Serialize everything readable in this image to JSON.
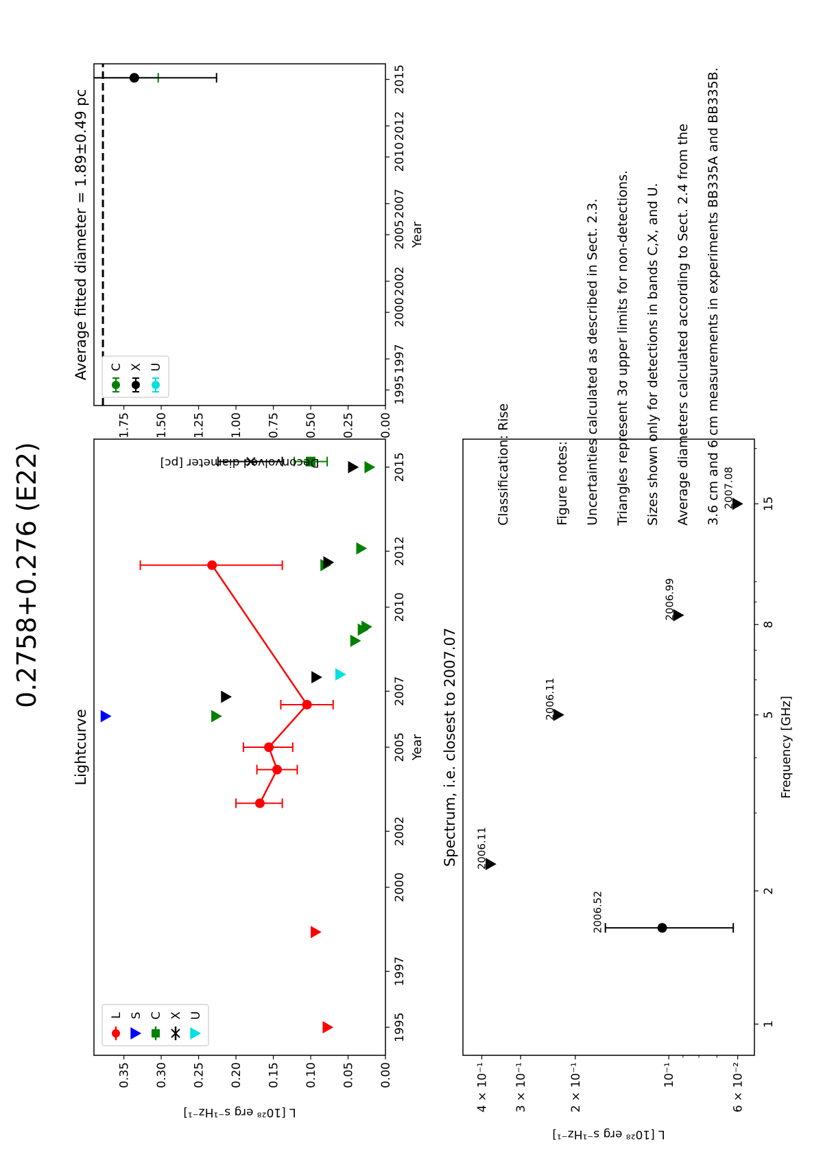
{
  "figure": {
    "title": "0.2758+0.276 (E22)",
    "classification": "Classification: Rise",
    "notes_heading": "Figure notes:",
    "notes": [
      "Uncertainties calculated as described in Sect. 2.3.",
      "Triangles represent 3σ upper limits for non-detections.",
      "Sizes shown only for detections in bands C,X, and U.",
      "Average diameters calculated according to Sect. 2.4 from the",
      "3.6 cm and 6 cm measurements in experiments BB335A and BB335B."
    ]
  },
  "chart_data": [
    {
      "id": "lightcurve",
      "type": "scatter",
      "title": "Lightcurve",
      "xlabel": "Year",
      "ylabel": "L [10²⁸ erg s⁻¹Hz⁻¹]",
      "xlim": [
        1994,
        2016
      ],
      "ylim": [
        0,
        0.39
      ],
      "x_ticks": [
        1995,
        1997,
        2000,
        2002,
        2005,
        2007,
        2010,
        2012,
        2015
      ],
      "y_ticks": [
        0.0,
        0.05,
        0.1,
        0.15,
        0.2,
        0.25,
        0.3,
        0.35
      ],
      "legend": {
        "position": "upper-left",
        "entries": [
          "L",
          "S",
          "C",
          "X",
          "U"
        ]
      },
      "series": [
        {
          "name": "L",
          "color": "#ff0000",
          "connected": true,
          "detections": [
            {
              "x": 2003.0,
              "y": 0.168,
              "ylo": 0.138,
              "yhi": 0.2
            },
            {
              "x": 2004.2,
              "y": 0.145,
              "ylo": 0.118,
              "yhi": 0.172
            },
            {
              "x": 2005.0,
              "y": 0.156,
              "ylo": 0.124,
              "yhi": 0.19
            },
            {
              "x": 2006.52,
              "y": 0.105,
              "ylo": 0.07,
              "yhi": 0.14
            },
            {
              "x": 2011.5,
              "y": 0.232,
              "ylo": 0.138,
              "yhi": 0.328
            }
          ],
          "upper_limits": [
            {
              "x": 1995.0,
              "y": 0.077
            },
            {
              "x": 1998.4,
              "y": 0.093
            }
          ]
        },
        {
          "name": "S",
          "color": "#0000ff",
          "upper_limits": [
            {
              "x": 2006.11,
              "y": 0.374
            }
          ]
        },
        {
          "name": "C",
          "color": "#008000",
          "detections": [
            {
              "x": 2015.2,
              "y": 0.1,
              "ylo": 0.078,
              "yhi": 0.122
            }
          ],
          "upper_limits": [
            {
              "x": 2006.11,
              "y": 0.226
            },
            {
              "x": 2008.8,
              "y": 0.04
            },
            {
              "x": 2009.2,
              "y": 0.03
            },
            {
              "x": 2009.3,
              "y": 0.025
            },
            {
              "x": 2011.5,
              "y": 0.08
            },
            {
              "x": 2012.1,
              "y": 0.032
            },
            {
              "x": 2015.0,
              "y": 0.021
            }
          ]
        },
        {
          "name": "X",
          "color": "#000000",
          "detections": [
            {
              "x": 2015.2,
              "y": 0.18,
              "ylo": 0.138,
              "yhi": 0.224
            }
          ],
          "upper_limits": [
            {
              "x": 2006.8,
              "y": 0.213
            },
            {
              "x": 2007.5,
              "y": 0.092
            },
            {
              "x": 2011.6,
              "y": 0.076
            },
            {
              "x": 2015.0,
              "y": 0.043
            }
          ]
        },
        {
          "name": "U",
          "color": "#00e0e0",
          "upper_limits": [
            {
              "x": 2007.6,
              "y": 0.06
            }
          ]
        }
      ]
    },
    {
      "id": "spectrum",
      "type": "scatter",
      "title": "Spectrum, i.e. closest to 2007.07",
      "xlabel": "Frequency [GHz]",
      "ylabel": "L [10²⁸ erg s⁻¹Hz⁻¹]",
      "x_scale": "log",
      "y_scale": "log",
      "xlim": [
        0.85,
        21
      ],
      "ylim": [
        0.053,
        0.46
      ],
      "x_ticks": [
        1,
        2,
        5,
        8,
        15
      ],
      "y_ticks": [
        0.06,
        0.1,
        0.2,
        0.3,
        0.4
      ],
      "y_tick_labels": [
        "6 × 10⁻²",
        "10⁻¹",
        "2 × 10⁻¹",
        "3 × 10⁻¹",
        "4 × 10⁻¹"
      ],
      "points": [
        {
          "x": 1.65,
          "y": 0.105,
          "ylo": 0.062,
          "yhi": 0.16,
          "kind": "detection",
          "label": "2006.52",
          "color": "#000000"
        },
        {
          "x": 2.3,
          "y": 0.374,
          "kind": "upper_limit",
          "label": "2006.11",
          "color": "#000000"
        },
        {
          "x": 5.0,
          "y": 0.226,
          "kind": "upper_limit",
          "label": "2006.11",
          "color": "#000000"
        },
        {
          "x": 8.4,
          "y": 0.093,
          "kind": "upper_limit",
          "label": "2006.99",
          "color": "#000000"
        },
        {
          "x": 15.0,
          "y": 0.06,
          "kind": "upper_limit",
          "label": "2007.08",
          "color": "#000000"
        }
      ]
    },
    {
      "id": "diameter",
      "type": "scatter",
      "title": "Average fitted diameter = 1.89±0.49 pc",
      "xlabel": "Year",
      "ylabel": "Deconvolved diameter [pc]",
      "xlim": [
        1994,
        2016
      ],
      "ylim": [
        0,
        1.95
      ],
      "x_ticks": [
        1995,
        1997,
        2000,
        2002,
        2005,
        2007,
        2010,
        2012,
        2015
      ],
      "y_ticks": [
        0.0,
        0.25,
        0.5,
        0.75,
        1.0,
        1.25,
        1.5,
        1.75
      ],
      "y_tick_labels": [
        "0.00",
        "0.25",
        "0.50",
        "0.75",
        "1.00",
        "1.25",
        "1.50",
        "1.75"
      ],
      "average_line": 1.89,
      "legend": {
        "position": "lower-left",
        "entries": [
          "C",
          "X",
          "U"
        ]
      },
      "series": [
        {
          "name": "C",
          "color": "#008000",
          "detections": [
            {
              "x": 2015.1,
              "y": 2.05,
              "ylo": 1.52,
              "yhi": 2.6
            }
          ]
        },
        {
          "name": "X",
          "color": "#000000",
          "detections": [
            {
              "x": 2015.1,
              "y": 1.68,
              "ylo": 1.13,
              "yhi": 2.25
            }
          ]
        },
        {
          "name": "U",
          "color": "#00e0e0",
          "detections": []
        }
      ]
    }
  ]
}
